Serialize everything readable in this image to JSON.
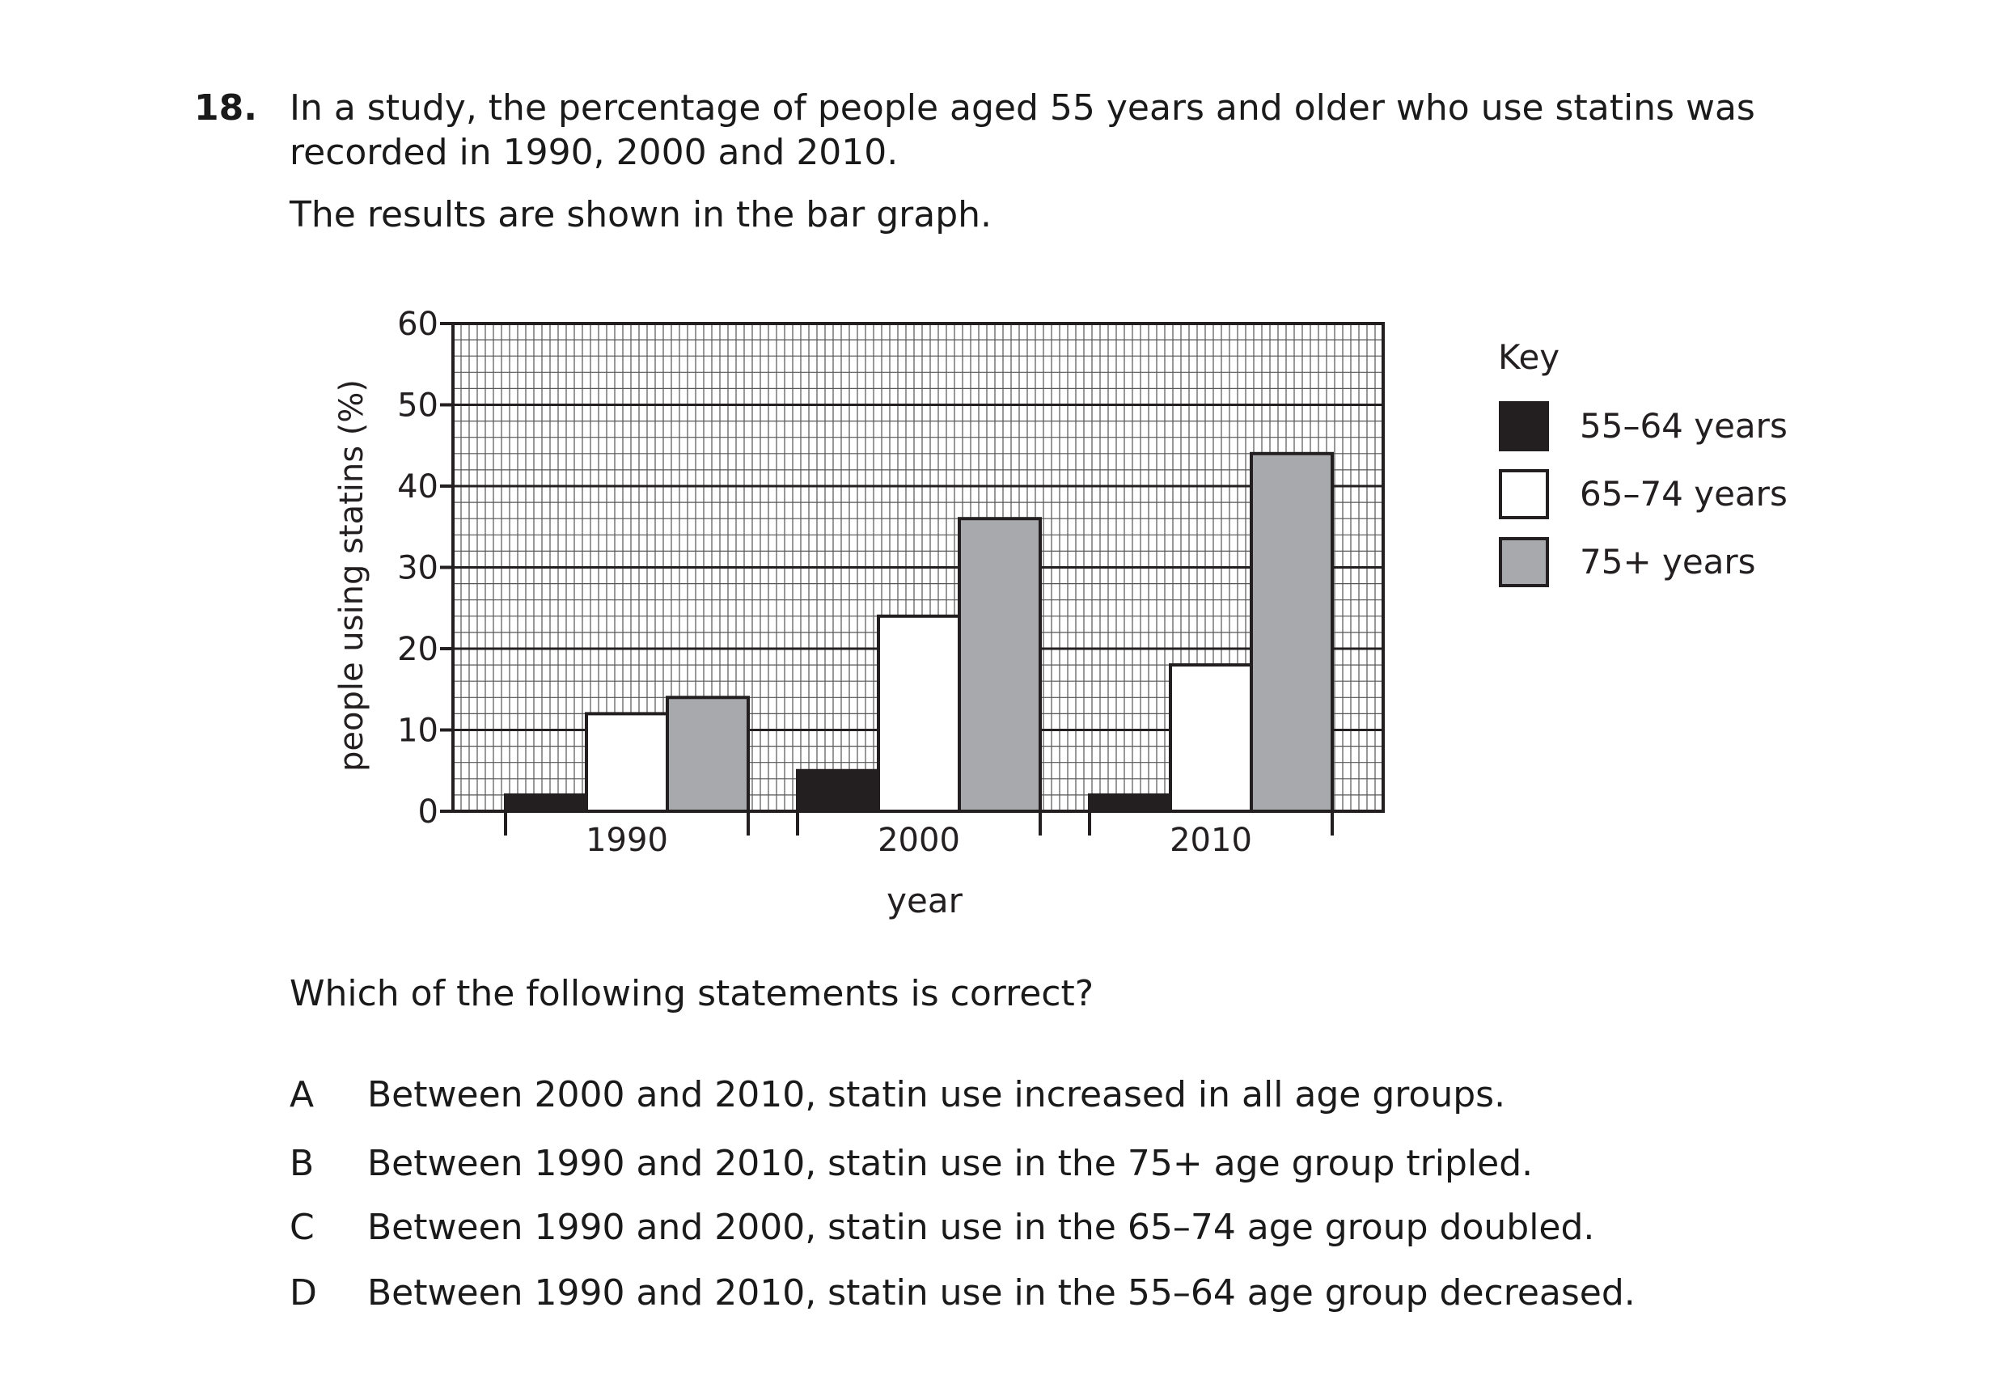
{
  "question": {
    "number": "18.",
    "stem": "In a study, the percentage of people aged 55 years and older who use statins was recorded in 1990, 2000 and 2010.",
    "stem2": "The results are shown in the bar graph.",
    "prompt": "Which of the following statements is correct?",
    "options": [
      {
        "letter": "A",
        "text": "Between 2000 and 2010, statin use increased in all age groups."
      },
      {
        "letter": "B",
        "text": "Between 1990 and 2010, statin use in the 75+ age group tripled."
      },
      {
        "letter": "C",
        "text": "Between 1990 and 2000, statin use in the 65–74 age group doubled."
      },
      {
        "letter": "D",
        "text": "Between 1990 and 2010, statin use in the 55–64 age group decreased."
      }
    ]
  },
  "chart_data": {
    "type": "bar",
    "xlabel": "year",
    "ylabel": "people using statins (%)",
    "categories": [
      "1990",
      "2000",
      "2010"
    ],
    "ylim": [
      0,
      60
    ],
    "yticks": [
      0,
      10,
      20,
      30,
      40,
      50,
      60
    ],
    "grid": true,
    "legend_title": "Key",
    "legend_position": "right",
    "series": [
      {
        "name": "55–64 years",
        "color": "#231f20",
        "values": [
          2,
          5,
          2
        ]
      },
      {
        "name": "65–74 years",
        "color": "#ffffff",
        "values": [
          12,
          24,
          18
        ]
      },
      {
        "name": "75+ years",
        "color": "#a7a9ac",
        "values": [
          14,
          36,
          44
        ]
      }
    ]
  }
}
